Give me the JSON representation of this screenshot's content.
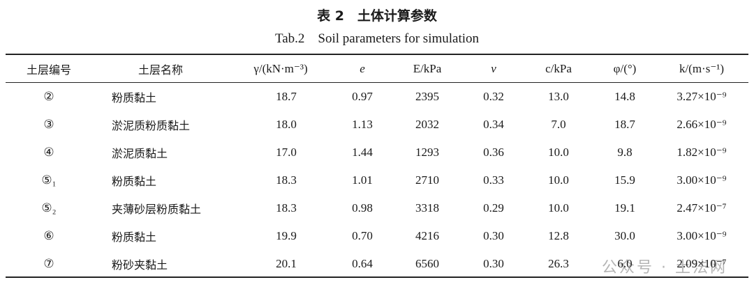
{
  "header": {
    "title": "表 2　土体计算参数",
    "subtitle": "Tab.2　Soil parameters for simulation"
  },
  "table": {
    "columns": [
      "土层编号",
      "土层名称",
      "γ/(kN·m⁻³)",
      "e",
      "E/kPa",
      "v",
      "c/kPa",
      "φ/(°)",
      "k/(m·s⁻¹)"
    ],
    "rows": [
      [
        "②",
        "粉质黏土",
        "18.7",
        "0.97",
        "2395",
        "0.32",
        "13.0",
        "14.8",
        "3.27×10⁻⁹"
      ],
      [
        "③",
        "淤泥质粉质黏土",
        "18.0",
        "1.13",
        "2032",
        "0.34",
        "7.0",
        "18.7",
        "2.66×10⁻⁹"
      ],
      [
        "④",
        "淤泥质黏土",
        "17.0",
        "1.44",
        "1293",
        "0.36",
        "10.0",
        "9.8",
        "1.82×10⁻⁹"
      ],
      [
        "⑤₁",
        "粉质黏土",
        "18.3",
        "1.01",
        "2710",
        "0.33",
        "10.0",
        "15.9",
        "3.00×10⁻⁹"
      ],
      [
        "⑤₂",
        "夹薄砂层粉质黏土",
        "18.3",
        "0.98",
        "3318",
        "0.29",
        "10.0",
        "19.1",
        "2.47×10⁻⁷"
      ],
      [
        "⑥",
        "粉质黏土",
        "19.9",
        "0.70",
        "4216",
        "0.30",
        "12.8",
        "30.0",
        "3.00×10⁻⁹"
      ],
      [
        "⑦",
        "粉砂夹黏土",
        "20.1",
        "0.64",
        "6560",
        "0.30",
        "26.3",
        "6.0",
        "2.09×10⁻⁷"
      ]
    ]
  },
  "watermark": "公众号 · 土法网"
}
